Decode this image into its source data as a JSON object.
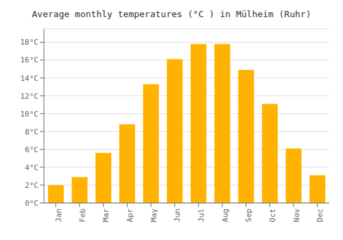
{
  "chart_data": {
    "type": "bar",
    "title": "Average monthly temperatures (°C ) in Mülheim (Ruhr)",
    "categories": [
      "Jan",
      "Feb",
      "Mar",
      "Apr",
      "May",
      "Jun",
      "Jul",
      "Aug",
      "Sep",
      "Oct",
      "Nov",
      "Dec"
    ],
    "values": [
      2.0,
      2.9,
      5.6,
      8.8,
      13.3,
      16.1,
      17.8,
      17.8,
      14.9,
      11.1,
      6.1,
      3.1
    ],
    "color": "#FFB300",
    "ylim": [
      0,
      19.5
    ],
    "yticks": [
      {
        "value": 0,
        "label": "0°C"
      },
      {
        "value": 2,
        "label": "2°C"
      },
      {
        "value": 4,
        "label": "4°C"
      },
      {
        "value": 6,
        "label": "6°C"
      },
      {
        "value": 8,
        "label": "8°C"
      },
      {
        "value": 10,
        "label": "10°C"
      },
      {
        "value": 12,
        "label": "12°C"
      },
      {
        "value": 14,
        "label": "14°C"
      },
      {
        "value": 16,
        "label": "16°C"
      },
      {
        "value": 18,
        "label": "18°C"
      }
    ],
    "grid": true
  }
}
